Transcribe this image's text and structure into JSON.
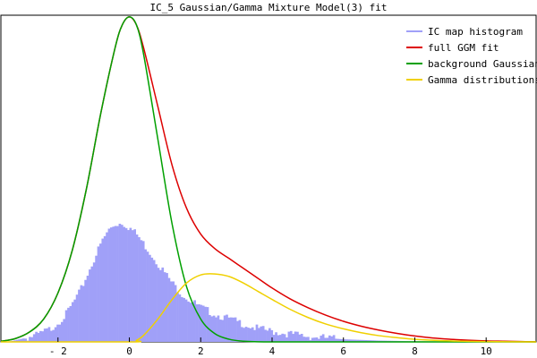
{
  "chart_data": {
    "type": "line",
    "title": "IC_5 Gaussian/Gamma Mixture Model(3) fit",
    "xlabel": "",
    "ylabel": "",
    "xlim": [
      -3.6,
      11.4
    ],
    "ylim": [
      0,
      1.0
    ],
    "x_ticks": [
      -2,
      0,
      2,
      4,
      6,
      8,
      10
    ],
    "x_tick_labels": [
      "- 2",
      "0",
      "2",
      "4",
      "6",
      "8",
      "10"
    ],
    "grid": false,
    "legend_position": "top-right",
    "series": [
      {
        "name": "IC map histogram",
        "kind": "histogram",
        "color": "#a0a0f8",
        "x": [
          -3.4,
          -3.0,
          -2.6,
          -2.2,
          -1.8,
          -1.4,
          -1.2,
          -1.0,
          -0.8,
          -0.6,
          -0.4,
          -0.2,
          0.0,
          0.2,
          0.4,
          0.6,
          0.8,
          1.0,
          1.2,
          1.4,
          1.6,
          1.8,
          2.0,
          2.4,
          2.8,
          3.2,
          3.6,
          4.0,
          4.5,
          5.0,
          5.5,
          6.0,
          6.5,
          7.0,
          7.5,
          8.0,
          9.0,
          10.0,
          11.0
        ],
        "values": [
          0.0,
          0.01,
          0.02,
          0.04,
          0.08,
          0.15,
          0.2,
          0.25,
          0.3,
          0.34,
          0.36,
          0.365,
          0.35,
          0.33,
          0.3,
          0.27,
          0.24,
          0.21,
          0.18,
          0.155,
          0.135,
          0.12,
          0.105,
          0.085,
          0.07,
          0.055,
          0.04,
          0.032,
          0.024,
          0.017,
          0.012,
          0.008,
          0.006,
          0.004,
          0.003,
          0.002,
          0.001,
          0.0005,
          0.0
        ]
      },
      {
        "name": "full GGM fit",
        "color": "#dd0000",
        "x": [
          -3.6,
          -3.2,
          -2.8,
          -2.4,
          -2.0,
          -1.6,
          -1.2,
          -0.8,
          -0.4,
          -0.2,
          0.0,
          0.2,
          0.4,
          0.8,
          1.2,
          1.6,
          2.0,
          2.4,
          2.8,
          3.2,
          3.6,
          4.0,
          4.5,
          5.0,
          5.5,
          6.0,
          6.5,
          7.0,
          7.5,
          8.0,
          8.5,
          9.0,
          9.5,
          10.0,
          10.5,
          11.0,
          11.4
        ],
        "values": [
          0.002,
          0.01,
          0.03,
          0.07,
          0.15,
          0.28,
          0.47,
          0.7,
          0.9,
          0.97,
          0.995,
          0.97,
          0.9,
          0.72,
          0.54,
          0.41,
          0.33,
          0.285,
          0.255,
          0.225,
          0.195,
          0.165,
          0.132,
          0.105,
          0.082,
          0.063,
          0.048,
          0.036,
          0.026,
          0.018,
          0.012,
          0.008,
          0.005,
          0.003,
          0.002,
          0.001,
          0.0005
        ]
      },
      {
        "name": "background Gaussian",
        "color": "#00a000",
        "x": [
          -3.6,
          -3.2,
          -2.8,
          -2.4,
          -2.0,
          -1.6,
          -1.2,
          -0.8,
          -0.4,
          -0.2,
          0.0,
          0.2,
          0.4,
          0.8,
          1.2,
          1.6,
          2.0,
          2.4,
          2.8,
          3.2,
          3.6,
          4.0,
          4.5,
          5.0,
          6.0,
          8.0,
          11.4
        ],
        "values": [
          0.002,
          0.01,
          0.03,
          0.07,
          0.15,
          0.28,
          0.47,
          0.7,
          0.9,
          0.97,
          0.995,
          0.97,
          0.88,
          0.62,
          0.36,
          0.17,
          0.07,
          0.025,
          0.008,
          0.002,
          0.0005,
          0.0,
          0.0,
          0.0,
          0.0,
          0.0,
          0.0
        ]
      },
      {
        "name": "Gamma distributions",
        "color": "#f0d000",
        "x": [
          -3.6,
          0.0,
          0.2,
          0.4,
          0.8,
          1.2,
          1.6,
          2.0,
          2.4,
          2.8,
          3.2,
          3.6,
          4.0,
          4.5,
          5.0,
          5.5,
          6.0,
          6.5,
          7.0,
          7.5,
          8.0,
          9.0,
          10.0,
          11.4
        ],
        "values": [
          0.0,
          0.0,
          0.005,
          0.02,
          0.07,
          0.13,
          0.18,
          0.205,
          0.208,
          0.2,
          0.18,
          0.155,
          0.13,
          0.1,
          0.075,
          0.055,
          0.04,
          0.028,
          0.019,
          0.013,
          0.008,
          0.003,
          0.001,
          0.0
        ]
      }
    ]
  }
}
